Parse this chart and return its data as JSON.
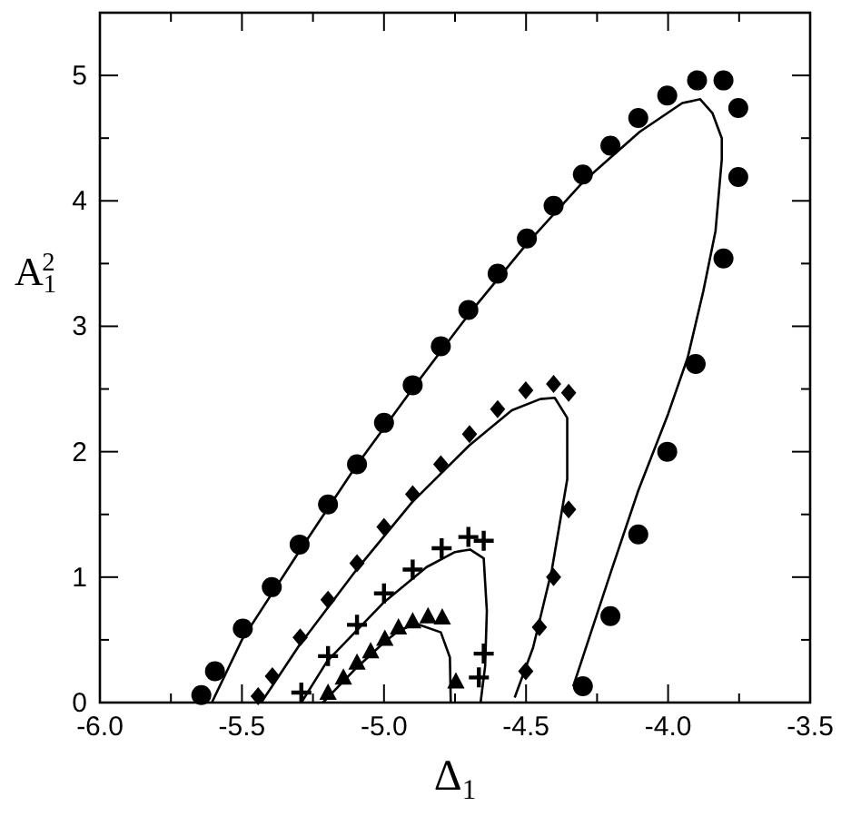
{
  "chart_data": {
    "type": "scatter",
    "xlabel": "Δ$_{1}$",
    "ylabel": "A$_{1}$$^{2}$",
    "xlim": [
      -6,
      -3.5
    ],
    "ylim": [
      0,
      5.5
    ],
    "xticks": [
      {
        "value": -6,
        "label": "-6.0"
      },
      {
        "value": -5.75,
        "label": null
      },
      {
        "value": -5.5,
        "label": "-5.5"
      },
      {
        "value": -5.25,
        "label": null
      },
      {
        "value": -5,
        "label": "-5.0"
      },
      {
        "value": -4.75,
        "label": null
      },
      {
        "value": -4.5,
        "label": "-4.5"
      },
      {
        "value": -4.25,
        "label": null
      },
      {
        "value": -4,
        "label": "-4.0"
      },
      {
        "value": -3.75,
        "label": null
      },
      {
        "value": -3.5,
        "label": "-3.5"
      }
    ],
    "yticks": [
      0,
      {
        "value": 0.5,
        "label": null
      },
      1,
      {
        "value": 1.5,
        "label": null
      },
      2,
      {
        "value": 2.5,
        "label": null
      },
      3,
      {
        "value": 3.5,
        "label": null
      },
      4,
      {
        "value": 4.5,
        "label": null
      },
      5
    ],
    "grid": false,
    "series": [
      {
        "marker": "circle",
        "color": "#000000",
        "x": [
          -5.643,
          -5.595,
          -5.497,
          -5.395,
          -5.297,
          -5.197,
          -5.095,
          -5.0,
          -4.899,
          -4.8,
          -4.703,
          -4.6,
          -4.497,
          -4.403,
          -4.3,
          -4.203,
          -4.105,
          -4.003,
          -3.898,
          -3.805,
          -3.753,
          -3.753,
          -3.805,
          -3.903,
          -4.003,
          -4.105,
          -4.203,
          -4.3
        ],
        "values": [
          0.06,
          0.25,
          0.59,
          0.92,
          1.26,
          1.58,
          1.9,
          2.23,
          2.53,
          2.84,
          3.13,
          3.42,
          3.7,
          3.96,
          4.21,
          4.44,
          4.66,
          4.84,
          4.96,
          4.96,
          4.74,
          4.19,
          3.54,
          2.7,
          2.0,
          1.34,
          0.69,
          0.13
        ]
      },
      {
        "marker": "diamond",
        "color": "#000000",
        "x": [
          -5.443,
          -5.393,
          -5.295,
          -5.197,
          -5.095,
          -5.0,
          -4.899,
          -4.8,
          -4.699,
          -4.6,
          -4.501,
          -4.403,
          -4.35,
          -4.35,
          -4.403,
          -4.453,
          -4.501
        ],
        "values": [
          0.05,
          0.21,
          0.52,
          0.82,
          1.11,
          1.4,
          1.66,
          1.9,
          2.14,
          2.34,
          2.49,
          2.54,
          2.47,
          1.54,
          1.0,
          0.6,
          0.25
        ]
      },
      {
        "marker": "cross",
        "color": "#000000",
        "x": [
          -5.291,
          -5.197,
          -5.095,
          -5.0,
          -4.899,
          -4.797,
          -4.703,
          -4.649,
          -4.649,
          -4.666
        ],
        "values": [
          0.08,
          0.37,
          0.62,
          0.87,
          1.06,
          1.23,
          1.32,
          1.29,
          0.39,
          0.2
        ]
      },
      {
        "marker": "triangle",
        "color": "#000000",
        "x": [
          -5.197,
          -5.143,
          -5.095,
          -5.047,
          -4.997,
          -4.949,
          -4.899,
          -4.845,
          -4.795,
          -4.747
        ],
        "values": [
          0.08,
          0.2,
          0.32,
          0.41,
          0.51,
          0.6,
          0.65,
          0.69,
          0.68,
          0.17
        ]
      },
      {
        "type": "line",
        "marker": "none",
        "line_style": "solid",
        "color": "#000000",
        "x": [
          -5.606,
          -5.5,
          -5.3,
          -5.1,
          -4.9,
          -4.7,
          -4.5,
          -4.3,
          -4.1,
          -3.95,
          -3.887,
          -3.844,
          -3.811,
          -3.811,
          -3.833,
          -3.876,
          -3.931,
          -4.0,
          -4.105,
          -4.2,
          -4.334
        ],
        "values": [
          0,
          0.5,
          1.2,
          1.88,
          2.5,
          3.1,
          3.65,
          4.15,
          4.55,
          4.78,
          4.81,
          4.7,
          4.5,
          4.33,
          3.76,
          3.28,
          2.75,
          2.3,
          1.69,
          1.05,
          0.13
        ]
      },
      {
        "type": "line",
        "marker": "none",
        "line_style": "solid",
        "color": "#000000",
        "x": [
          -5.432,
          -5.3,
          -5.1,
          -4.9,
          -4.7,
          -4.55,
          -4.45,
          -4.399,
          -4.355,
          -4.355,
          -4.409,
          -4.475,
          -4.54
        ],
        "values": [
          0,
          0.45,
          1.05,
          1.6,
          2.05,
          2.33,
          2.42,
          2.43,
          2.27,
          1.78,
          1.06,
          0.44,
          0.04
        ]
      },
      {
        "type": "line",
        "marker": "none",
        "line_style": "solid",
        "color": "#000000",
        "x": [
          -5.291,
          -5.2,
          -5.0,
          -4.85,
          -4.75,
          -4.697,
          -4.649,
          -4.638,
          -4.644,
          -4.66
        ],
        "values": [
          0,
          0.33,
          0.8,
          1.08,
          1.2,
          1.22,
          1.15,
          0.73,
          0.29,
          0
        ]
      },
      {
        "type": "line",
        "marker": "none",
        "line_style": "solid",
        "color": "#000000",
        "x": [
          -5.215,
          -5.1,
          -5.0,
          -4.95,
          -4.888,
          -4.8,
          -4.768,
          -4.765
        ],
        "values": [
          0,
          0.27,
          0.48,
          0.57,
          0.63,
          0.56,
          0.36,
          0
        ]
      }
    ]
  }
}
